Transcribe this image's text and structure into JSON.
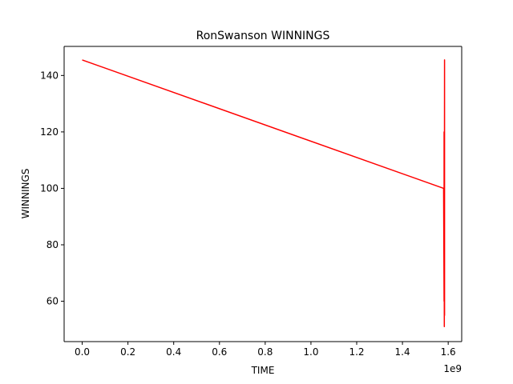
{
  "chart_data": {
    "type": "line",
    "title": "RonSwanson WINNINGS",
    "xlabel": "TIME",
    "ylabel": "WINNINGS",
    "x_offset_label": "1e9",
    "xlim": [
      -0.079,
      1.659
    ],
    "ylim": [
      45.7,
      150.3
    ],
    "xticks": [
      0.0,
      0.2,
      0.4,
      0.6,
      0.8,
      1.0,
      1.2,
      1.4,
      1.6
    ],
    "xtick_labels": [
      "0.0",
      "0.2",
      "0.4",
      "0.6",
      "0.8",
      "1.0",
      "1.2",
      "1.4",
      "1.6"
    ],
    "yticks": [
      60,
      80,
      100,
      120,
      140
    ],
    "ytick_labels": [
      "60",
      "80",
      "100",
      "120",
      "140"
    ],
    "grid": false,
    "series": [
      {
        "color": "#ff0000",
        "x": [
          0.0,
          1.58,
          1.582,
          1.582,
          1.583,
          1.583,
          1.583,
          1.584,
          1.584,
          1.584
        ],
        "y": [
          145.5,
          100.0,
          60.0,
          120.0,
          51.0,
          110.0,
          52.0,
          145.5,
          55.0,
          120.0
        ]
      }
    ]
  }
}
